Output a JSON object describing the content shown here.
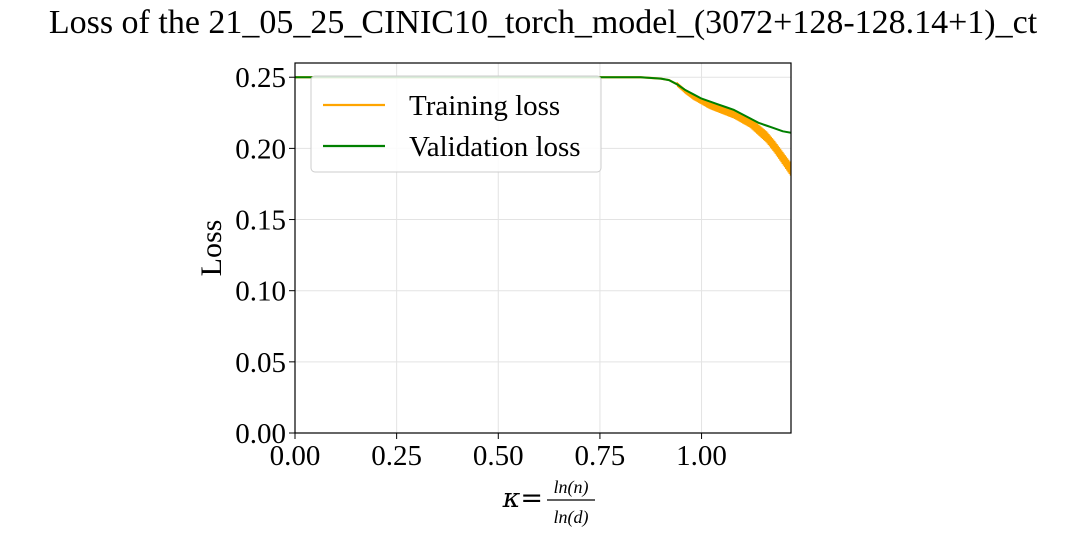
{
  "chart_data": {
    "type": "line",
    "title": "Loss of the 21_05_25_CINIC10_torch_model_(3072+128-128.14+1)_ct",
    "xlabel": {
      "prefix": "κ=",
      "numerator": "ln(n)",
      "denominator": "ln(d)"
    },
    "ylabel": "Loss",
    "xlim": [
      0.0,
      1.22
    ],
    "ylim": [
      0.0,
      0.26
    ],
    "xticks": [
      0.0,
      0.25,
      0.5,
      0.75,
      1.0
    ],
    "xtick_labels": [
      "0.00",
      "0.25",
      "0.50",
      "0.75",
      "1.00"
    ],
    "yticks": [
      0.0,
      0.05,
      0.1,
      0.15,
      0.2,
      0.25
    ],
    "ytick_labels": [
      "0.00",
      "0.05",
      "0.10",
      "0.15",
      "0.20",
      "0.25"
    ],
    "grid": true,
    "legend_position": "top-left",
    "series": [
      {
        "name": "Training loss",
        "color": "#FFA500",
        "x": [
          0.0,
          0.1,
          0.2,
          0.3,
          0.4,
          0.5,
          0.6,
          0.7,
          0.8,
          0.85,
          0.9,
          0.92,
          0.94,
          0.96,
          0.98,
          1.0,
          1.02,
          1.04,
          1.06,
          1.08,
          1.1,
          1.12,
          1.14,
          1.16,
          1.18,
          1.2,
          1.22
        ],
        "y": [
          0.25,
          0.25,
          0.25,
          0.25,
          0.25,
          0.25,
          0.25,
          0.25,
          0.25,
          0.25,
          0.249,
          0.248,
          0.245,
          0.24,
          0.236,
          0.233,
          0.23,
          0.228,
          0.226,
          0.224,
          0.221,
          0.218,
          0.213,
          0.208,
          0.201,
          0.193,
          0.185
        ]
      },
      {
        "name": "Validation loss",
        "color": "#008000",
        "x": [
          0.0,
          0.1,
          0.2,
          0.3,
          0.4,
          0.5,
          0.6,
          0.7,
          0.8,
          0.85,
          0.9,
          0.92,
          0.94,
          0.96,
          0.98,
          1.0,
          1.02,
          1.04,
          1.06,
          1.08,
          1.1,
          1.12,
          1.14,
          1.16,
          1.18,
          1.2,
          1.22
        ],
        "y": [
          0.25,
          0.25,
          0.25,
          0.25,
          0.25,
          0.25,
          0.25,
          0.25,
          0.25,
          0.25,
          0.249,
          0.248,
          0.245,
          0.241,
          0.238,
          0.235,
          0.233,
          0.231,
          0.229,
          0.227,
          0.224,
          0.221,
          0.218,
          0.216,
          0.214,
          0.212,
          0.211
        ]
      }
    ]
  }
}
